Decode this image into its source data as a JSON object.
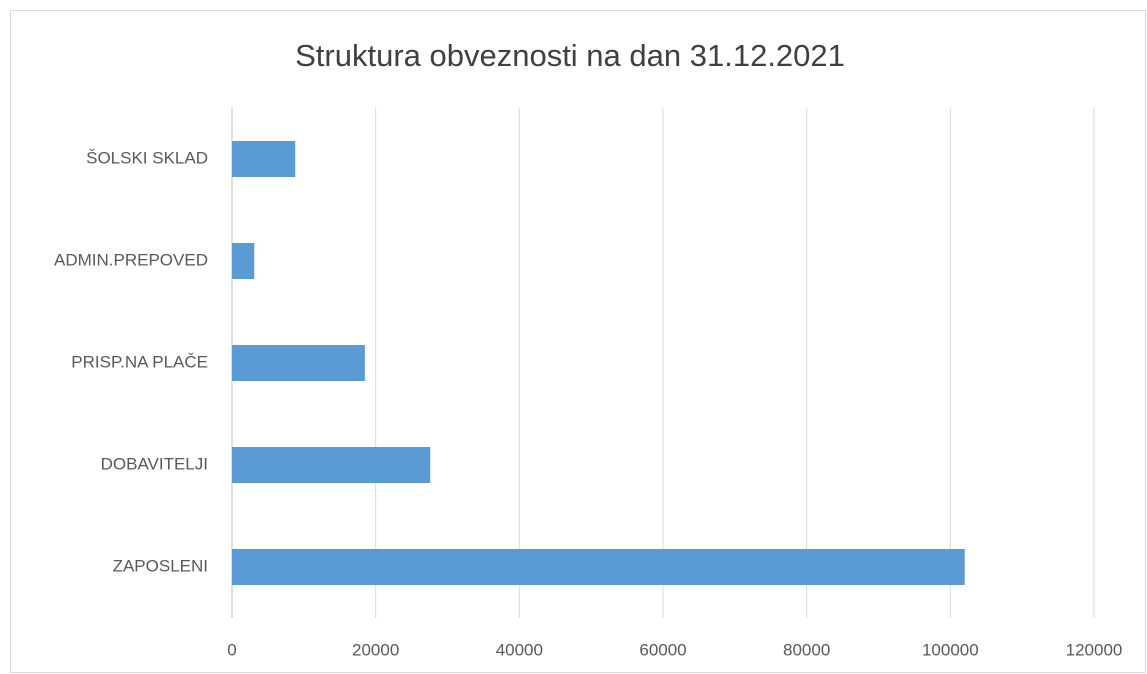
{
  "chart_data": {
    "type": "bar",
    "orientation": "horizontal",
    "title": "Struktura obveznosti na dan 31.12.2021",
    "categories": [
      "ŠOLSKI SKLAD",
      "ADMIN.PREPOVED",
      "PRISP.NA PLAČE",
      "DOBAVITELJI",
      "ZAPOSLENI"
    ],
    "values": [
      8800,
      3100,
      18500,
      27600,
      102000
    ],
    "color": "#5b9bd5",
    "xlim": [
      0,
      120000
    ],
    "xticks": [
      0,
      20000,
      40000,
      60000,
      80000,
      100000,
      120000
    ],
    "grid": true
  }
}
